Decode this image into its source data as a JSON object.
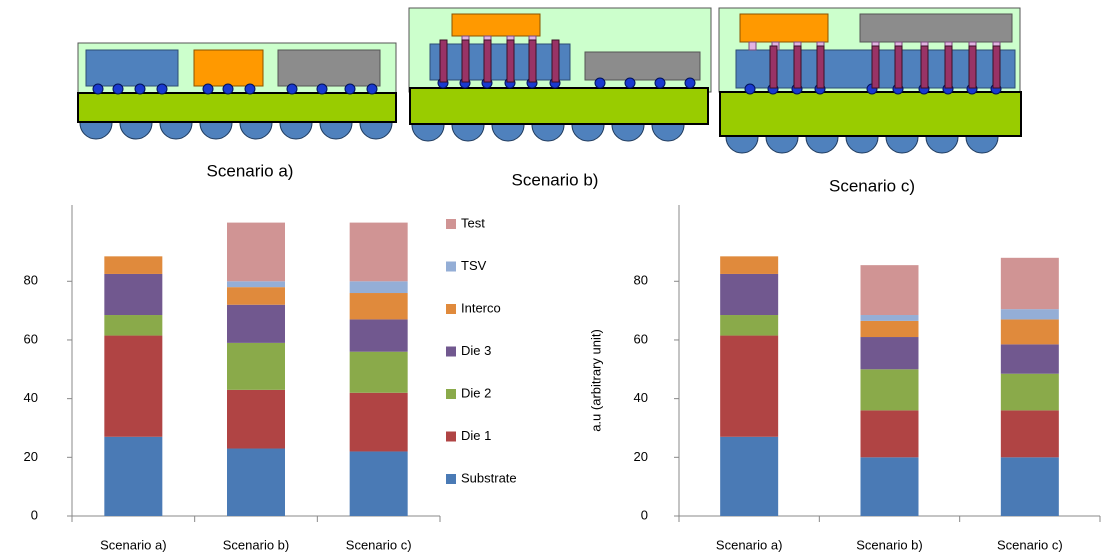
{
  "diagram": {
    "captions": [
      "Scenario a)",
      "Scenario b)",
      "Scenario c)"
    ]
  },
  "chart_data": [
    {
      "type": "stacked-bar",
      "categories": [
        "Scenario a)",
        "Scenario b)",
        "Scenario c)"
      ],
      "ylim": [
        0,
        106
      ],
      "yticks": [
        0,
        20,
        40,
        60,
        80
      ],
      "legend": true,
      "series": [
        {
          "name": "Substrate",
          "color": "#4a7ab5",
          "values": [
            27,
            23,
            22
          ]
        },
        {
          "name": "Die 1",
          "color": "#b04444",
          "values": [
            34.5,
            20,
            20
          ]
        },
        {
          "name": "Die 2",
          "color": "#8aaa4a",
          "values": [
            7,
            16,
            14
          ]
        },
        {
          "name": "Die 3",
          "color": "#71588f",
          "values": [
            14,
            13,
            11
          ]
        },
        {
          "name": "Interco",
          "color": "#e08a3c",
          "values": [
            6,
            6,
            9
          ]
        },
        {
          "name": "TSV",
          "color": "#94aed6",
          "values": [
            0,
            2,
            4
          ]
        },
        {
          "name": "Test",
          "color": "#d09494",
          "values": [
            0,
            20,
            20
          ]
        }
      ]
    },
    {
      "type": "stacked-bar",
      "categories": [
        "Scenario a)",
        "Scenario b)",
        "Scenario c)"
      ],
      "y_label": "a.u (arbitrary unit)",
      "ylim": [
        0,
        106
      ],
      "yticks": [
        0,
        20,
        40,
        60,
        80
      ],
      "legend": false,
      "series": [
        {
          "color": "#4a7ab5",
          "values": [
            27,
            20,
            20
          ]
        },
        {
          "color": "#b04444",
          "values": [
            34.5,
            16,
            16
          ]
        },
        {
          "color": "#8aaa4a",
          "values": [
            7,
            14,
            12.5
          ]
        },
        {
          "color": "#71588f",
          "values": [
            14,
            11,
            10
          ]
        },
        {
          "color": "#e08a3c",
          "values": [
            6,
            5.5,
            8.5
          ]
        },
        {
          "color": "#94aed6",
          "values": [
            0,
            2,
            3.5
          ]
        },
        {
          "color": "#d09494",
          "values": [
            0,
            17,
            17.5
          ]
        }
      ]
    }
  ]
}
